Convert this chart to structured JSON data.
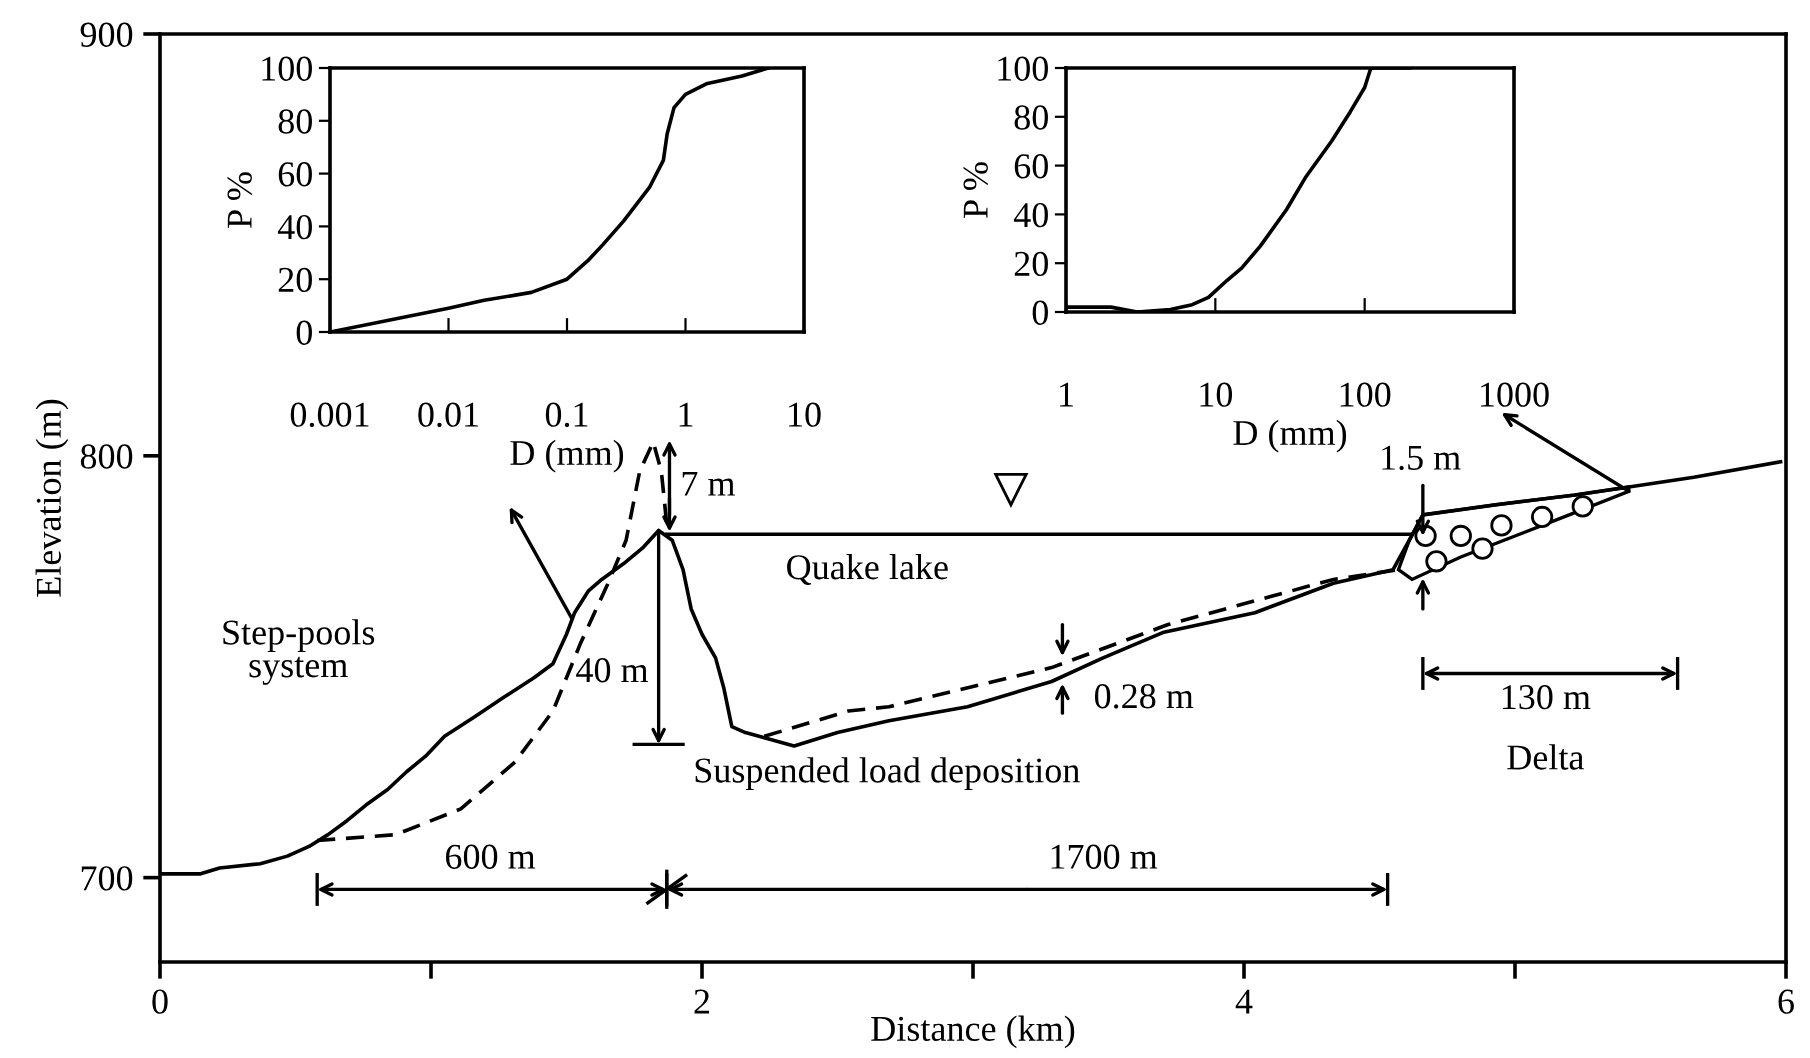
{
  "chart_data": [
    {
      "type": "line",
      "xlabel": "Distance (km)",
      "ylabel": "Elevation (m)",
      "xlim": [
        0,
        6
      ],
      "ylim": [
        680,
        900
      ],
      "xticks": [
        0,
        {
          "value": 1,
          "label": null
        },
        2,
        {
          "value": 3,
          "label": null
        },
        4,
        {
          "value": 5,
          "label": null
        },
        6
      ],
      "yticks": [
        700,
        800,
        900
      ],
      "series": [
        {
          "color": "#000000",
          "line_style": "solid",
          "x": [
            0.0,
            0.15,
            0.22,
            0.37,
            0.47,
            0.55,
            0.62,
            0.69,
            0.76,
            0.84,
            0.91,
            0.98,
            1.05,
            1.16,
            1.27,
            1.38,
            1.45,
            1.5,
            1.53,
            1.58,
            1.63,
            1.71,
            1.78,
            1.84,
            1.89,
            1.93,
            1.96,
            2.0,
            2.05,
            2.08,
            2.11,
            2.16,
            2.34,
            2.5,
            2.69,
            2.98,
            3.29,
            3.48,
            3.7,
            4.04,
            4.33,
            4.55,
            4.61,
            4.66,
            4.93,
            5.22,
            5.42,
            5.66,
            5.98
          ],
          "values": [
            700.9,
            700.9,
            702.3,
            703.3,
            705.1,
            707.4,
            710.2,
            713.5,
            717.2,
            720.9,
            725.1,
            728.8,
            733.5,
            738.1,
            742.8,
            747.4,
            750.7,
            757.7,
            762.8,
            767.9,
            770.7,
            774.4,
            778.1,
            782.3,
            780.0,
            773.0,
            763.7,
            757.7,
            752.1,
            745.1,
            735.8,
            734.4,
            731.2,
            734.4,
            737.2,
            740.5,
            746.5,
            752.1,
            758.1,
            762.8,
            769.8,
            773.0,
            780.0,
            786.0,
            788.4,
            790.7,
            792.6,
            794.9,
            798.6
          ]
        },
        {
          "color": "#000000",
          "line_style": "dashed",
          "x": [
            0.58,
            0.87,
            1.11,
            1.31,
            1.45,
            1.55,
            1.65,
            1.72,
            1.77,
            1.82,
            1.85,
            1.87,
            2.05,
            2.23,
            2.54,
            2.69,
            3.29,
            3.72,
            4.33,
            4.57
          ],
          "values": [
            708.8,
            710.2,
            716.3,
            727.4,
            739.5,
            755.3,
            769.3,
            780.0,
            796.3,
            803.3,
            796.3,
            783.7,
            null,
            733.5,
            739.5,
            740.5,
            749.8,
            760.0,
            770.7,
            773.0
          ]
        },
        {
          "color": "#000000",
          "line_style": "solid",
          "x": [
            1.87,
            4.62
          ],
          "values": [
            781.4,
            781.4
          ]
        }
      ],
      "annotations": [
        "7 m",
        "Quake lake",
        "40 m",
        "Step-pools\nsystem",
        {
          "text": "Suspended load deposition",
          "x": 2.34,
          "y": 731.2
        },
        "0.28 m",
        "1.5 m",
        "130 m",
        "Delta",
        "600 m",
        "1700 m"
      ]
    },
    {
      "type": "line",
      "xlabel": "D (mm)",
      "ylabel": "P %",
      "log": "x",
      "xlim": [
        0.001,
        10
      ],
      "ylim": [
        0,
        100
      ],
      "xticks": [
        0.001,
        0.01,
        0.1,
        1,
        10
      ],
      "yticks": [
        0,
        20,
        40,
        60,
        80,
        100
      ],
      "series": [
        {
          "color": "#000000",
          "x": [
            0.001,
            0.01,
            0.02,
            0.05,
            0.1,
            0.15,
            0.2,
            0.3,
            0.5,
            0.65,
            0.7,
            0.8,
            1,
            1.5,
            3,
            5
          ],
          "values": [
            0,
            9,
            12,
            15,
            20,
            27,
            33,
            42,
            55,
            65,
            75,
            85,
            90,
            94,
            97,
            100
          ]
        }
      ]
    },
    {
      "type": "line",
      "xlabel": "D (mm)",
      "ylabel": "P %",
      "log": "x",
      "xlim": [
        1,
        1000
      ],
      "ylim": [
        0,
        100
      ],
      "xticks": [
        1,
        10,
        100,
        1000
      ],
      "yticks": [
        0,
        20,
        40,
        60,
        80,
        100
      ],
      "series": [
        {
          "color": "#000000",
          "x": [
            1,
            2,
            3,
            5,
            7,
            9,
            12,
            15,
            20,
            30,
            40,
            60,
            80,
            100,
            110,
            200
          ],
          "values": [
            2,
            2,
            0,
            1,
            3,
            6,
            13,
            18,
            27,
            42,
            55,
            70,
            82,
            92,
            100,
            100
          ]
        }
      ]
    }
  ]
}
